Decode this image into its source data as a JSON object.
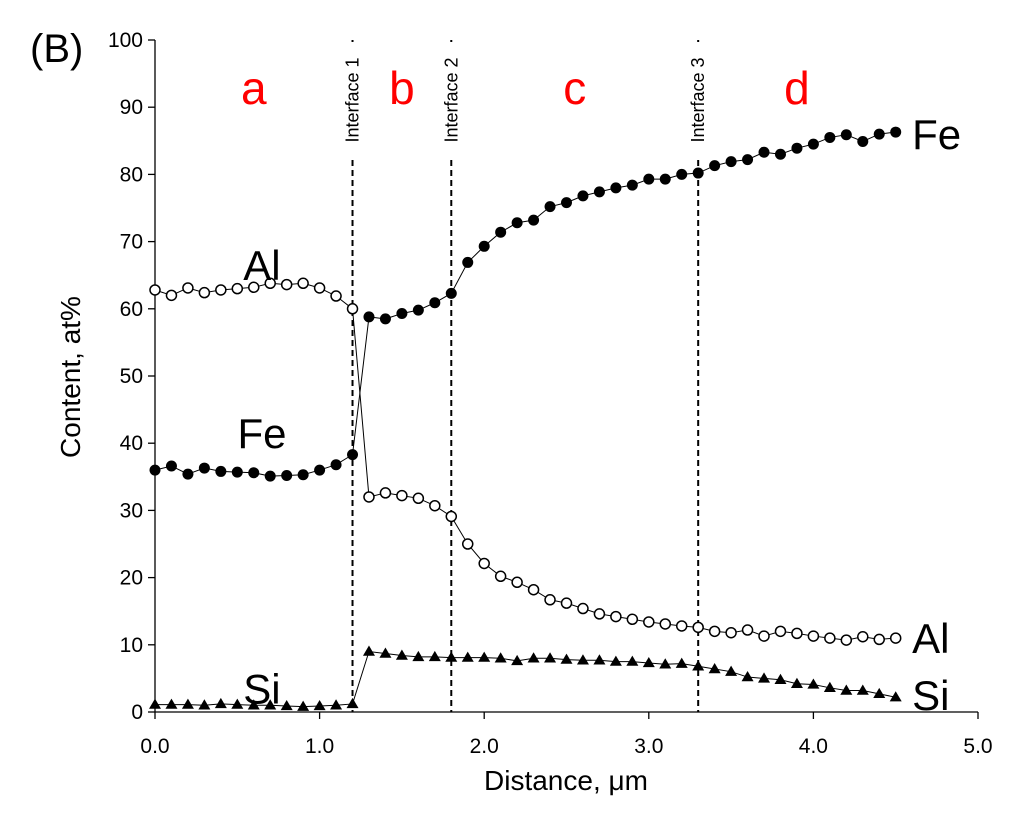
{
  "chart_data": {
    "type": "line",
    "panel_label": "(B)",
    "title": "",
    "xlabel": "Distance, μm",
    "ylabel": "Content, at%",
    "xlim": [
      0,
      5
    ],
    "ylim": [
      0,
      100
    ],
    "x_ticks": [
      "0.0",
      "1.0",
      "2.0",
      "3.0",
      "4.0",
      "5.0"
    ],
    "y_ticks": [
      "0",
      "10",
      "20",
      "30",
      "40",
      "50",
      "60",
      "70",
      "80",
      "90",
      "100"
    ],
    "grid": false,
    "regions": [
      {
        "label": "a",
        "x": 0.6
      },
      {
        "label": "b",
        "x": 1.5
      },
      {
        "label": "c",
        "x": 2.55
      },
      {
        "label": "d",
        "x": 3.9
      }
    ],
    "interfaces": [
      {
        "label": "Interface 1",
        "x": 1.2
      },
      {
        "label": "Interface 2",
        "x": 1.8
      },
      {
        "label": "Interface 3",
        "x": 3.3
      }
    ],
    "series_labels": [
      {
        "text": "Al",
        "x": 0.65,
        "y": 66.5
      },
      {
        "text": "Fe",
        "x": 0.65,
        "y": 41.5
      },
      {
        "text": "Si",
        "x": 0.65,
        "y": 3.5
      },
      {
        "text": "Fe",
        "x": 4.6,
        "y": 86
      },
      {
        "text": "Al",
        "x": 4.6,
        "y": 11
      },
      {
        "text": "Si",
        "x": 4.6,
        "y": 2.5
      }
    ],
    "series": [
      {
        "name": "Fe",
        "marker": "filled-circle",
        "x": [
          0.0,
          0.1,
          0.2,
          0.3,
          0.4,
          0.5,
          0.6,
          0.7,
          0.8,
          0.9,
          1.0,
          1.1,
          1.2,
          1.3,
          1.4,
          1.5,
          1.6,
          1.7,
          1.8,
          1.9,
          2.0,
          2.1,
          2.2,
          2.3,
          2.4,
          2.5,
          2.6,
          2.7,
          2.8,
          2.9,
          3.0,
          3.1,
          3.2,
          3.3,
          3.4,
          3.5,
          3.6,
          3.7,
          3.8,
          3.9,
          4.0,
          4.1,
          4.2,
          4.3,
          4.4,
          4.5
        ],
        "values": [
          36.0,
          36.6,
          35.4,
          36.3,
          35.8,
          35.7,
          35.6,
          35.1,
          35.2,
          35.3,
          36.0,
          36.8,
          38.3,
          58.8,
          58.5,
          59.3,
          59.8,
          60.9,
          62.3,
          66.9,
          69.3,
          71.4,
          72.8,
          73.2,
          75.2,
          75.8,
          76.8,
          77.4,
          78.0,
          78.4,
          79.3,
          79.3,
          80.0,
          80.2,
          81.3,
          81.9,
          82.2,
          83.3,
          83.0,
          83.9,
          84.5,
          85.5,
          85.9,
          84.9,
          86.0,
          86.3
        ]
      },
      {
        "name": "Al",
        "marker": "open-circle",
        "x": [
          0.0,
          0.1,
          0.2,
          0.3,
          0.4,
          0.5,
          0.6,
          0.7,
          0.8,
          0.9,
          1.0,
          1.1,
          1.2,
          1.3,
          1.4,
          1.5,
          1.6,
          1.7,
          1.8,
          1.9,
          2.0,
          2.1,
          2.2,
          2.3,
          2.4,
          2.5,
          2.6,
          2.7,
          2.8,
          2.9,
          3.0,
          3.1,
          3.2,
          3.3,
          3.4,
          3.5,
          3.6,
          3.7,
          3.8,
          3.9,
          4.0,
          4.1,
          4.2,
          4.3,
          4.4,
          4.5
        ],
        "values": [
          62.8,
          62.0,
          63.1,
          62.4,
          62.8,
          63.0,
          63.2,
          63.8,
          63.6,
          63.8,
          63.1,
          61.9,
          60.0,
          32.0,
          32.6,
          32.2,
          31.8,
          30.7,
          29.1,
          25.0,
          22.1,
          20.2,
          19.3,
          18.2,
          16.7,
          16.2,
          15.4,
          14.6,
          14.2,
          13.8,
          13.4,
          13.1,
          12.8,
          12.6,
          12.0,
          11.8,
          12.2,
          11.3,
          12.0,
          11.7,
          11.3,
          11.0,
          10.7,
          11.2,
          10.8,
          11.0
        ]
      },
      {
        "name": "Si",
        "marker": "filled-triangle",
        "x": [
          0.0,
          0.1,
          0.2,
          0.3,
          0.4,
          0.5,
          0.6,
          0.7,
          0.8,
          0.9,
          1.0,
          1.1,
          1.2,
          1.3,
          1.4,
          1.5,
          1.6,
          1.7,
          1.8,
          1.9,
          2.0,
          2.1,
          2.2,
          2.3,
          2.4,
          2.5,
          2.6,
          2.7,
          2.8,
          2.9,
          3.0,
          3.1,
          3.2,
          3.3,
          3.4,
          3.5,
          3.6,
          3.7,
          3.8,
          3.9,
          4.0,
          4.1,
          4.2,
          4.3,
          4.4,
          4.5
        ],
        "values": [
          1.1,
          1.1,
          1.1,
          1.0,
          1.2,
          1.1,
          1.0,
          1.0,
          0.9,
          0.8,
          0.9,
          1.0,
          1.2,
          9.0,
          8.7,
          8.4,
          8.2,
          8.2,
          8.1,
          8.1,
          8.1,
          8.0,
          7.6,
          8.0,
          8.0,
          7.8,
          7.7,
          7.7,
          7.5,
          7.5,
          7.3,
          7.1,
          7.2,
          6.8,
          6.4,
          6.0,
          5.2,
          5.0,
          4.8,
          4.2,
          4.1,
          3.6,
          3.2,
          3.2,
          2.7,
          2.2
        ]
      }
    ]
  }
}
